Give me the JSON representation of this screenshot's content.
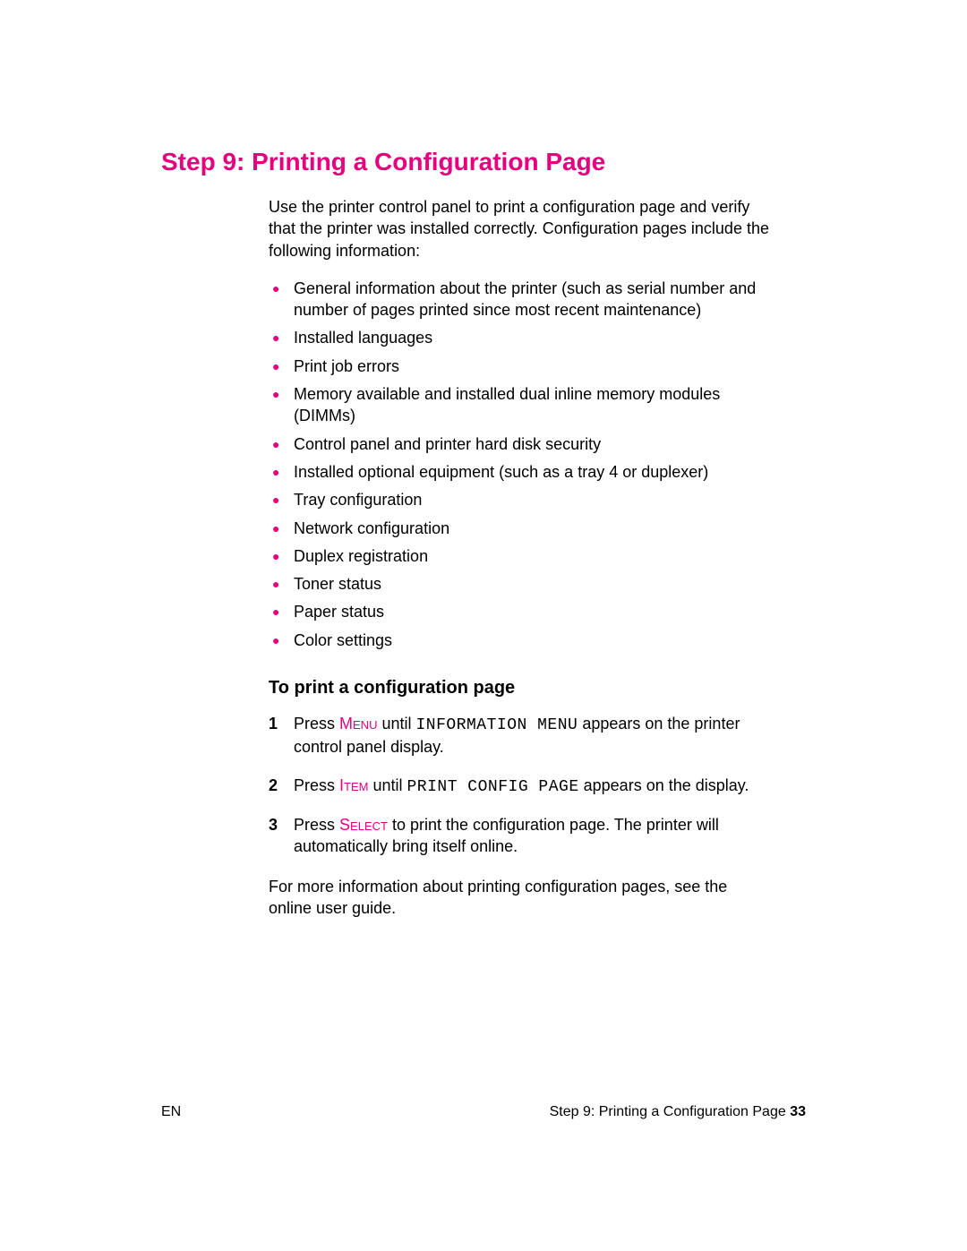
{
  "colors": {
    "accent": "#e6007e",
    "text": "#000000",
    "background": "#ffffff"
  },
  "title": "Step 9: Printing a Configuration Page",
  "intro": "Use the printer control panel to print a configuration page and verify that the printer was installed correctly. Configuration pages include the following information:",
  "bullets": [
    "General information about the printer (such as serial number and number of pages printed since most recent maintenance)",
    "Installed languages",
    "Print job errors",
    "Memory available and installed dual inline memory modules (DIMMs)",
    "Control panel and printer hard disk security",
    "Installed optional equipment (such as a tray 4 or duplexer)",
    "Tray configuration",
    "Network configuration",
    "Duplex registration",
    "Toner status",
    "Paper status",
    "Color settings"
  ],
  "subhead": "To print a configuration page",
  "steps": [
    {
      "num": "1",
      "pre": "Press ",
      "btn": "Menu",
      "mid": " until ",
      "mono": "INFORMATION MENU",
      "post": " appears on the printer control panel display."
    },
    {
      "num": "2",
      "pre": "Press ",
      "btn": "Item",
      "mid": " until ",
      "mono": "PRINT CONFIG PAGE",
      "post": " appears on the display."
    },
    {
      "num": "3",
      "pre": "Press ",
      "btn": "Select",
      "mid": "",
      "mono": "",
      "post": " to print the configuration page. The printer will automatically bring itself online."
    }
  ],
  "closing": "For more information about printing configuration pages, see the online user guide.",
  "footer": {
    "left": "EN",
    "right_text": "Step 9: Printing a Configuration Page ",
    "right_page": "33"
  }
}
